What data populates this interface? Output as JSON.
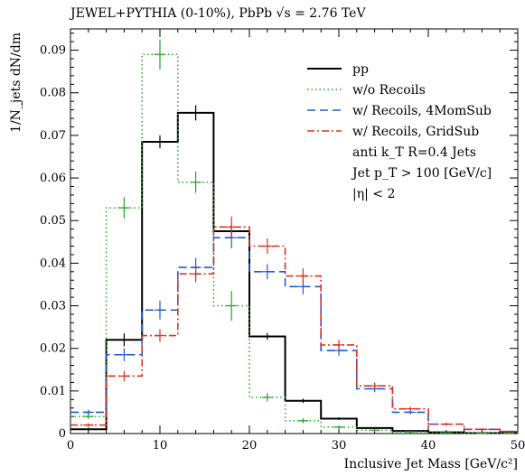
{
  "title": "JEWEL+PYTHIA (0-10%), PbPb √s = 2.76 TeV",
  "chart_data": {
    "type": "line",
    "title": "JEWEL+PYTHIA (0-10%), PbPb √s = 2.76 TeV",
    "xlabel": "Inclusive Jet Mass [GeV/c²]",
    "ylabel": "1/N_jets dN/dm",
    "xlim": [
      0,
      50
    ],
    "ylim": [
      0,
      0.095
    ],
    "x_ticks": [
      0,
      10,
      20,
      30,
      40,
      50
    ],
    "x_tick_labels": [
      "0",
      "10",
      "20",
      "30",
      "40",
      "50"
    ],
    "y_ticks": [
      0,
      0.01,
      0.02,
      0.03,
      0.04,
      0.05,
      0.06,
      0.07,
      0.08,
      0.09
    ],
    "y_tick_labels": [
      "0",
      "0.01",
      "0.02",
      "0.03",
      "0.04",
      "0.05",
      "0.06",
      "0.07",
      "0.08",
      "0.09"
    ],
    "grid": false,
    "legend_position": "top-right",
    "bin_edges": [
      0,
      4,
      8,
      12,
      16,
      20,
      24,
      28,
      32,
      36,
      40,
      44,
      48,
      50
    ],
    "series": [
      {
        "name": "pp",
        "color": "#000000",
        "dash": "solid",
        "values": [
          0.001,
          0.022,
          0.0685,
          0.0753,
          0.0475,
          0.0228,
          0.0077,
          0.0035,
          0.0013,
          0.0006,
          0.0003,
          0.0001,
          0.0001
        ],
        "errors": [
          0.0004,
          0.0015,
          0.0015,
          0.0018,
          0.0015,
          0.0008,
          0.0005,
          0.0003,
          0.0002,
          0.0002,
          0.0001,
          0.0001,
          0.0001
        ]
      },
      {
        "name": "w/o Recoils",
        "color": "#2ca02c",
        "dash": "dotted",
        "values": [
          0.004,
          0.053,
          0.089,
          0.059,
          0.03,
          0.0085,
          0.003,
          0.0015,
          0.0008,
          0.0004,
          0.0002,
          0.0001,
          0.0001
        ],
        "errors": [
          0.0006,
          0.0025,
          0.0035,
          0.0025,
          0.0035,
          0.001,
          0.0006,
          0.0004,
          0.0003,
          0.0002,
          0.0001,
          0.0001,
          0.0001
        ]
      },
      {
        "name": "w/ Recoils, 4MomSub",
        "color": "#1f5bd6",
        "dash": "dashed",
        "values": [
          0.005,
          0.0185,
          0.029,
          0.039,
          0.046,
          0.038,
          0.0345,
          0.0195,
          0.0105,
          0.005,
          0.0022,
          0.001,
          0.0005
        ],
        "errors": [
          0.0006,
          0.0015,
          0.0022,
          0.0022,
          0.0025,
          0.0018,
          0.0018,
          0.0012,
          0.0008,
          0.0005,
          0.0003,
          0.0002,
          0.0002
        ]
      },
      {
        "name": "w/ Recoils, GridSub",
        "color": "#e0321e",
        "dash": "dashdot",
        "values": [
          0.002,
          0.0135,
          0.023,
          0.0375,
          0.0485,
          0.044,
          0.037,
          0.0208,
          0.0112,
          0.0058,
          0.0022,
          0.001,
          0.0005
        ],
        "errors": [
          0.0004,
          0.0012,
          0.0015,
          0.002,
          0.0025,
          0.0018,
          0.0018,
          0.0012,
          0.0008,
          0.0005,
          0.0003,
          0.0002,
          0.0002
        ]
      }
    ],
    "annotations": [
      "anti k_T R=0.4 Jets",
      "Jet p_T > 100 [GeV/c]",
      "|η| < 2"
    ]
  }
}
